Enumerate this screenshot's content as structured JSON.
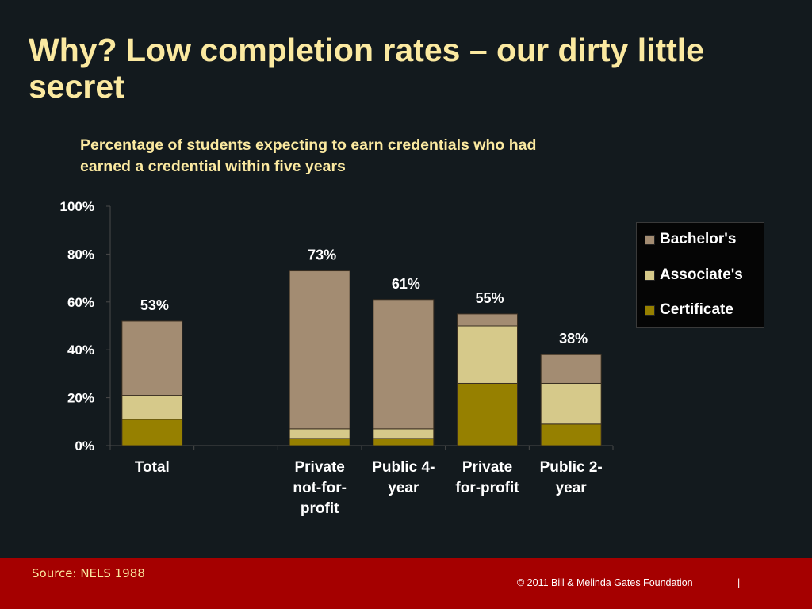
{
  "slide": {
    "title": "Why?  Low completion rates – our dirty little secret"
  },
  "chart_data": {
    "type": "bar",
    "stacked": true,
    "title": "Percentage of students expecting to earn credentials who had earned a credential within five years",
    "categories": [
      "Total",
      "",
      "Private not-for-profit",
      "Public 4-year",
      "Private for-profit",
      "Public 2-year"
    ],
    "category_labels": [
      [
        "Total"
      ],
      [],
      [
        "Private",
        "not-for-",
        "profit"
      ],
      [
        "Public 4-",
        "year"
      ],
      [
        "Private",
        "for-profit"
      ],
      [
        "Public 2-",
        "year"
      ]
    ],
    "series": [
      {
        "name": "Certificate",
        "color": "#968000",
        "values": [
          11,
          null,
          3,
          3,
          26,
          9
        ]
      },
      {
        "name": "Associate's",
        "color": "#d6c98a",
        "values": [
          10,
          null,
          4,
          4,
          24,
          17
        ]
      },
      {
        "name": "Bachelor's",
        "color": "#a38c72",
        "values": [
          31,
          null,
          66,
          54,
          5,
          12
        ]
      }
    ],
    "total_labels": [
      "53%",
      "",
      "73%",
      "61%",
      "55%",
      "38%"
    ],
    "ylim": [
      0,
      100
    ],
    "yticks": [
      "0%",
      "20%",
      "40%",
      "60%",
      "80%",
      "100%"
    ],
    "xlabel": "",
    "ylabel": "",
    "grid": false,
    "legend_position": "right",
    "legend_order": [
      "Bachelor's",
      "Associate's",
      "Certificate"
    ]
  },
  "footer": {
    "source": "Source: NELS 1988",
    "copyright": "© 2011 Bill & Melinda Gates Foundation",
    "separator": "|",
    "bar_color": "#a50000"
  }
}
